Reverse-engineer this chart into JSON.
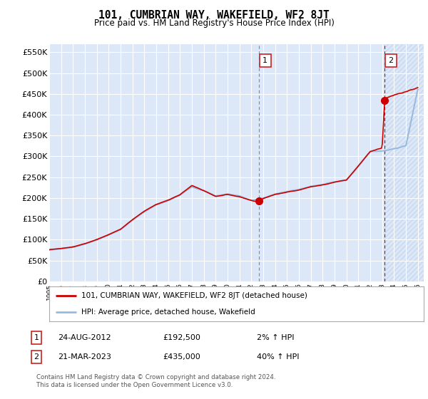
{
  "title": "101, CUMBRIAN WAY, WAKEFIELD, WF2 8JT",
  "subtitle": "Price paid vs. HM Land Registry's House Price Index (HPI)",
  "ylim": [
    0,
    570000
  ],
  "yticks": [
    0,
    50000,
    100000,
    150000,
    200000,
    250000,
    300000,
    350000,
    400000,
    450000,
    500000,
    550000
  ],
  "ytick_labels": [
    "£0",
    "£50K",
    "£100K",
    "£150K",
    "£200K",
    "£250K",
    "£300K",
    "£350K",
    "£400K",
    "£450K",
    "£500K",
    "£550K"
  ],
  "property_color": "#cc0000",
  "hpi_color": "#99bbdd",
  "background_color": "#dce8f8",
  "grid_color": "#ffffff",
  "hatch_color": "#c8d8ee",
  "legend_label_property": "101, CUMBRIAN WAY, WAKEFIELD, WF2 8JT (detached house)",
  "legend_label_hpi": "HPI: Average price, detached house, Wakefield",
  "annotation1_label": "1",
  "annotation1_date": "24-AUG-2012",
  "annotation1_price": "£192,500",
  "annotation1_hpi": "2% ↑ HPI",
  "annotation1_year": 2012.65,
  "annotation1_value": 192500,
  "annotation2_label": "2",
  "annotation2_date": "21-MAR-2023",
  "annotation2_price": "£435,000",
  "annotation2_hpi": "40% ↑ HPI",
  "annotation2_year": 2023.22,
  "annotation2_value": 435000,
  "footer": "Contains HM Land Registry data © Crown copyright and database right 2024.\nThis data is licensed under the Open Government Licence v3.0."
}
